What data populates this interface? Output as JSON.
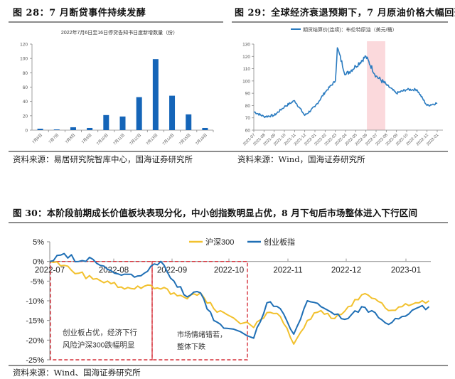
{
  "figures": {
    "fig28": {
      "title": "图 28：7 月断贷事件持续发酵",
      "source": "资料来源：易居研究院智库中心，国海证券研究所"
    },
    "fig29": {
      "title": "图 29：全球经济衰退预期下，7 月原油价格大幅回落",
      "source": "资料来源：Wind，国海证券研究所"
    },
    "fig30": {
      "title": "图 30：本阶段前期成长价值板块表现分化，中小创指数明显占优，8 月下旬后市场整体进入下行区间",
      "source": "资料来源：Wind、国海证券研究所"
    }
  },
  "colors": {
    "bar_blue": "#1565b8",
    "oil_blue": "#2a7bc0",
    "hs300_yellow": "#f2c12e",
    "cyb_blue": "#1f6fb5",
    "highlight_pink": "#fbd9dc",
    "dash_red": "#d6313a",
    "axis_gray": "#888888"
  },
  "chart_data": [
    {
      "type": "bar",
      "title": "2022年7月6日至16日停贷告知书日度新增数量（份）",
      "categories": [
        "7月6日",
        "7月7日",
        "7月8日",
        "7月9日",
        "7月10日",
        "7月11日",
        "7月12日",
        "7月13日",
        "7月14日",
        "7月15日",
        "7月16日"
      ],
      "values": [
        2,
        1,
        4,
        3,
        21,
        19,
        46,
        99,
        48,
        22,
        3
      ],
      "xlabel": "",
      "ylabel": "",
      "yticks": [
        0,
        20,
        40,
        60,
        80,
        100,
        120
      ],
      "ylim": [
        0,
        120
      ],
      "grid": false
    },
    {
      "type": "line",
      "title": "",
      "legend": [
        "期货结算价(连续)：布伦特原油（美元/桶）"
      ],
      "legend_position": "top",
      "xticks": [
        "2021-07",
        "2021-08",
        "2021-09",
        "2021-10",
        "2021-11",
        "2021-12",
        "2022-01",
        "2022-02",
        "2022-03",
        "2022-04",
        "2022-05",
        "2022-06",
        "2022-07",
        "2022-08",
        "2022-09",
        "2022-10",
        "2022-11",
        "2022-12",
        "2023-01"
      ],
      "yticks": [
        60,
        70,
        80,
        90,
        100,
        110,
        120,
        130
      ],
      "ylim": [
        60,
        130
      ],
      "highlight_band": [
        "2022-06",
        "2022-08"
      ],
      "series": [
        {
          "name": "期货结算价(连续)：布伦特原油（美元/桶）",
          "x": [
            "2021-07",
            "2021-08",
            "2021-09",
            "2021-10",
            "2021-11",
            "2021-12",
            "2022-01",
            "2022-02",
            "2022-03",
            "2022-03b",
            "2022-04",
            "2022-05",
            "2022-06",
            "2022-07",
            "2022-08",
            "2022-09",
            "2022-10",
            "2022-11",
            "2022-12",
            "2023-01"
          ],
          "values": [
            75,
            71,
            72,
            79,
            84,
            72,
            79,
            91,
            100,
            127,
            105,
            112,
            120,
            104,
            97,
            90,
            93,
            93,
            80,
            82
          ]
        }
      ]
    },
    {
      "type": "line",
      "title": "",
      "legend": [
        "沪深300",
        "创业板指"
      ],
      "legend_position": "top-right",
      "xticks": [
        "2022-07",
        "2022-08",
        "2022-09",
        "2022-10",
        "2022-11",
        "2022-12",
        "2023-01"
      ],
      "yticks": [
        "5%",
        "0%",
        "-5%",
        "-10%",
        "-15%",
        "-20%",
        "-25%"
      ],
      "ylim": [
        -25,
        5
      ],
      "series": [
        {
          "name": "沪深300",
          "x": [
            "07-01",
            "07-08",
            "07-15",
            "07-22",
            "07-29",
            "08-05",
            "08-12",
            "08-19",
            "08-26",
            "09-02",
            "09-09",
            "09-16",
            "09-23",
            "09-30",
            "10-14",
            "10-21",
            "10-28",
            "11-04",
            "11-11",
            "11-18",
            "11-25",
            "12-02",
            "12-09",
            "12-16",
            "12-23",
            "12-30",
            "01-06",
            "01-13"
          ],
          "values": [
            0,
            -1,
            -3,
            -4.5,
            -5,
            -6.5,
            -7,
            -6,
            -7,
            -8,
            -9.5,
            -8,
            -12,
            -13.5,
            -16.8,
            -13,
            -14,
            -21,
            -15,
            -12.5,
            -14.5,
            -11.5,
            -8.5,
            -9.5,
            -12.5,
            -11.5,
            -10.5,
            -10
          ]
        },
        {
          "name": "创业板指",
          "x": [
            "07-01",
            "07-08",
            "07-15",
            "07-22",
            "07-29",
            "08-05",
            "08-12",
            "08-19",
            "08-26",
            "09-02",
            "09-09",
            "09-16",
            "09-23",
            "09-30",
            "10-14",
            "10-21",
            "10-28",
            "11-04",
            "11-11",
            "11-18",
            "11-25",
            "12-02",
            "12-09",
            "12-16",
            "12-23",
            "12-30",
            "01-06",
            "01-13"
          ],
          "values": [
            0,
            2,
            0,
            0.5,
            -2,
            -3.5,
            -4,
            -2.5,
            0,
            -5,
            -9,
            -8,
            -15,
            -17,
            -19.5,
            -10.5,
            -12,
            -18.5,
            -10,
            -11.5,
            -13.5,
            -14.5,
            -11.5,
            -13,
            -16,
            -14,
            -12,
            -11.5
          ]
        }
      ],
      "annotations": [
        {
          "text": "创业板占优，经济下行\n风险沪深300跌幅明显",
          "box": [
            "2022-07-01",
            "2022-08-25"
          ]
        },
        {
          "text": "市场情绪错若，\n整体下跌",
          "box": [
            "2022-08-25",
            "2022-10-18"
          ]
        }
      ],
      "annotation_lines": [
        "创业板占优，经济下行",
        "风险沪深300跌幅明显",
        "市场情绪错若，",
        "整体下跌"
      ]
    }
  ]
}
